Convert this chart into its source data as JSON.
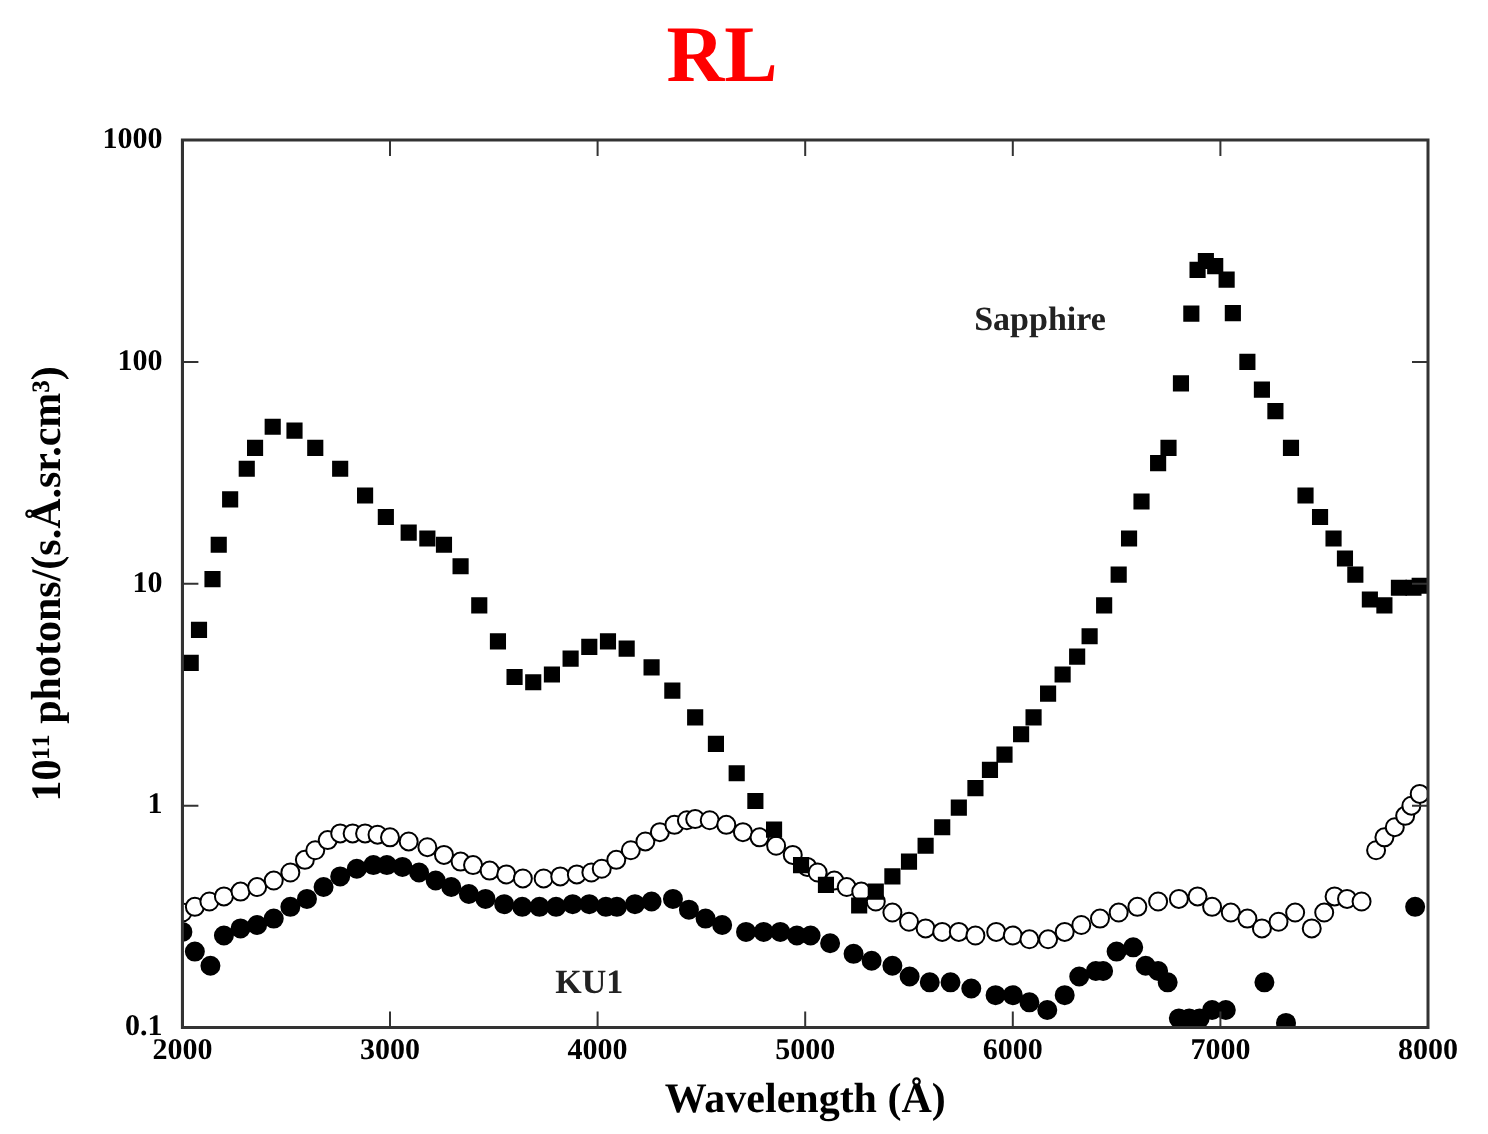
{
  "chart_data": {
    "type": "scatter",
    "title": "RL",
    "xlabel": "Wavelength (Å)",
    "ylabel": "10¹¹ photons/(s.Å.sr.cm³)",
    "log": "y",
    "xlim": [
      2000,
      8000
    ],
    "xticks": [
      2000,
      3000,
      4000,
      5000,
      6000,
      7000,
      8000
    ],
    "ylim": [
      0.1,
      1000
    ],
    "yticks": [
      0.1,
      1,
      10,
      100,
      1000
    ],
    "grid": false,
    "legend": false,
    "series": [
      {
        "name": "Sapphire",
        "color": "#000000",
        "marker": "square",
        "x": [
          2040,
          2080,
          2145,
          2175,
          2230,
          2310,
          2350,
          2435,
          2540,
          2640,
          2760,
          2880,
          2980,
          3090,
          3180,
          3260,
          3340,
          3430,
          3520,
          3600,
          3690,
          3780,
          3870,
          3960,
          4050,
          4140,
          4260,
          4360,
          4470,
          4570,
          4670,
          4760,
          4850,
          4980,
          5100,
          5260,
          5340,
          5420,
          5500,
          5580,
          5660,
          5740,
          5820,
          5890,
          5960,
          6040,
          6100,
          6170,
          6240,
          6310,
          6370,
          6440,
          6510,
          6560,
          6620,
          6700,
          6750,
          6810,
          6860,
          6890,
          6930,
          6975,
          7030,
          7060,
          7130,
          7200,
          7265,
          7340,
          7410,
          7480,
          7545,
          7600,
          7650,
          7720,
          7790,
          7860,
          7930,
          7960
        ],
        "values": [
          4.4,
          6.2,
          10.5,
          15,
          24,
          33,
          41,
          51,
          49,
          41,
          33,
          25,
          20,
          17,
          16,
          15,
          12,
          8,
          5.5,
          3.8,
          3.6,
          3.9,
          4.6,
          5.2,
          5.5,
          5.1,
          4.2,
          3.3,
          2.5,
          1.9,
          1.4,
          1.05,
          0.78,
          0.54,
          0.44,
          0.355,
          0.41,
          0.48,
          0.56,
          0.66,
          0.8,
          0.98,
          1.2,
          1.45,
          1.7,
          2.1,
          2.5,
          3.2,
          3.9,
          4.7,
          5.8,
          8,
          11,
          16,
          23.5,
          35,
          41,
          80,
          165,
          260,
          285,
          270,
          235,
          166,
          100,
          75,
          60,
          41,
          25,
          20,
          16,
          13,
          11,
          8.5,
          8,
          9.6,
          9.6,
          9.8
        ]
      },
      {
        "color": "#ffffff",
        "marker": "circle",
        "x": [
          2000,
          2060,
          2130,
          2200,
          2280,
          2360,
          2440,
          2520,
          2590,
          2640,
          2700,
          2760,
          2820,
          2880,
          2940,
          3000,
          3090,
          3180,
          3260,
          3340,
          3400,
          3480,
          3560,
          3640,
          3740,
          3820,
          3900,
          3970,
          4020,
          4090,
          4160,
          4230,
          4300,
          4370,
          4430,
          4470,
          4540,
          4620,
          4700,
          4780,
          4860,
          4940,
          5010,
          5060,
          5140,
          5200,
          5270,
          5340,
          5420,
          5500,
          5580,
          5660,
          5740,
          5820,
          5920,
          6000,
          6080,
          6170,
          6250,
          6330,
          6420,
          6510,
          6600,
          6700,
          6800,
          6890,
          6960,
          7050,
          7130,
          7200,
          7280,
          7360,
          7440,
          7500,
          7550,
          7610,
          7680,
          7750,
          7790,
          7840,
          7890,
          7920,
          7960
        ],
        "values": [
          0.33,
          0.35,
          0.37,
          0.39,
          0.41,
          0.43,
          0.46,
          0.5,
          0.57,
          0.63,
          0.7,
          0.75,
          0.75,
          0.75,
          0.74,
          0.72,
          0.69,
          0.65,
          0.6,
          0.56,
          0.54,
          0.51,
          0.49,
          0.47,
          0.47,
          0.48,
          0.49,
          0.5,
          0.52,
          0.57,
          0.63,
          0.69,
          0.76,
          0.82,
          0.86,
          0.87,
          0.86,
          0.82,
          0.76,
          0.72,
          0.66,
          0.6,
          0.53,
          0.5,
          0.46,
          0.43,
          0.41,
          0.37,
          0.33,
          0.3,
          0.28,
          0.27,
          0.27,
          0.26,
          0.27,
          0.26,
          0.25,
          0.25,
          0.27,
          0.29,
          0.31,
          0.33,
          0.35,
          0.37,
          0.38,
          0.39,
          0.35,
          0.33,
          0.31,
          0.28,
          0.3,
          0.33,
          0.28,
          0.33,
          0.39,
          0.38,
          0.37,
          0.63,
          0.72,
          0.8,
          0.9,
          1.0,
          1.13
        ]
      },
      {
        "name": "KU1",
        "color": "#000000",
        "marker": "circle",
        "x": [
          2000,
          2060,
          2135,
          2200,
          2280,
          2360,
          2440,
          2520,
          2600,
          2680,
          2760,
          2840,
          2920,
          2985,
          3060,
          3140,
          3220,
          3295,
          3380,
          3460,
          3550,
          3637,
          3720,
          3800,
          3880,
          3960,
          4040,
          4093,
          4180,
          4260,
          4363,
          4440,
          4520,
          4600,
          4715,
          4800,
          4880,
          4960,
          5026,
          5120,
          5233,
          5320,
          5420,
          5503,
          5600,
          5700,
          5800,
          5917,
          6000,
          6080,
          6166,
          6250,
          6320,
          6400,
          6435,
          6500,
          6580,
          6640,
          6700,
          6746,
          6800,
          6850,
          6900,
          6960,
          7026,
          7212,
          7316,
          7938
        ],
        "values": [
          0.27,
          0.22,
          0.19,
          0.26,
          0.28,
          0.29,
          0.31,
          0.35,
          0.38,
          0.43,
          0.48,
          0.52,
          0.54,
          0.54,
          0.53,
          0.5,
          0.46,
          0.43,
          0.4,
          0.38,
          0.36,
          0.35,
          0.35,
          0.35,
          0.36,
          0.36,
          0.35,
          0.35,
          0.36,
          0.37,
          0.38,
          0.34,
          0.31,
          0.29,
          0.27,
          0.27,
          0.27,
          0.26,
          0.26,
          0.24,
          0.215,
          0.2,
          0.19,
          0.17,
          0.16,
          0.16,
          0.15,
          0.14,
          0.14,
          0.13,
          0.12,
          0.14,
          0.17,
          0.18,
          0.18,
          0.22,
          0.23,
          0.19,
          0.18,
          0.16,
          0.11,
          0.11,
          0.11,
          0.12,
          0.12,
          0.16,
          0.105,
          0.35
        ]
      }
    ]
  }
}
